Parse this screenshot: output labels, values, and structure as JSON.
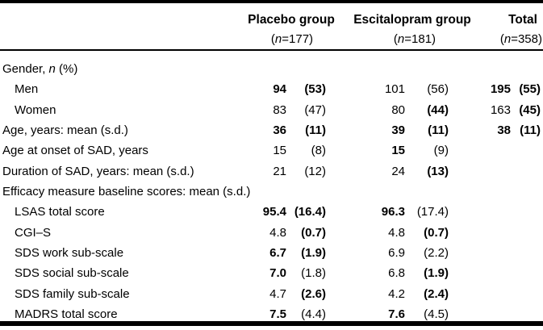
{
  "colors": {
    "text": "#000000",
    "background": "#ffffff",
    "rule": "#000000"
  },
  "table": {
    "header": {
      "columns": [
        {
          "title": "Placebo group",
          "sub": [
            {
              "t": "("
            },
            {
              "t": "n",
              "i": true
            },
            {
              "t": "=177)"
            }
          ]
        },
        {
          "title": "Escitalopram group",
          "sub": [
            {
              "t": "("
            },
            {
              "t": "n",
              "i": true
            },
            {
              "t": "=181)"
            }
          ]
        },
        {
          "title": "Total",
          "sub": [
            {
              "t": "("
            },
            {
              "t": "n",
              "i": true
            },
            {
              "t": "=358)"
            }
          ]
        }
      ]
    },
    "rows": [
      {
        "label": [
          {
            "t": "Gender, "
          },
          {
            "t": "n",
            "i": true
          },
          {
            "t": " (%)"
          }
        ],
        "indent": false,
        "placebo": null,
        "escitalopram": null,
        "total": null
      },
      {
        "label": [
          {
            "t": "Men"
          }
        ],
        "indent": true,
        "placebo": {
          "v": "94",
          "p": "(53)",
          "vb": true,
          "pb": true
        },
        "escitalopram": {
          "v": "101",
          "p": "(56)"
        },
        "total": {
          "v": "195",
          "p": "(55)",
          "vb": true,
          "pb": true
        }
      },
      {
        "label": [
          {
            "t": "Women"
          }
        ],
        "indent": true,
        "placebo": {
          "v": "83",
          "p": "(47)"
        },
        "escitalopram": {
          "v": "80",
          "p": "(44)",
          "pb": true
        },
        "total": {
          "v": "163",
          "p": "(45)",
          "pb": true
        }
      },
      {
        "label": [
          {
            "t": "Age, years: mean (s.d.)"
          }
        ],
        "indent": false,
        "placebo": {
          "v": "36",
          "p": "(11)",
          "vb": true,
          "pb": true
        },
        "escitalopram": {
          "v": "39",
          "p": "(11)",
          "vb": true,
          "pb": true
        },
        "total": {
          "v": "38",
          "p": "(11)",
          "vb": true,
          "pb": true
        }
      },
      {
        "label": [
          {
            "t": "Age at onset of SAD, years"
          }
        ],
        "indent": false,
        "placebo": {
          "v": "15",
          "p": "(8)"
        },
        "escitalopram": {
          "v": "15",
          "p": "(9)",
          "vb": true
        },
        "total": null
      },
      {
        "label": [
          {
            "t": "Duration of SAD, years: mean (s.d.)"
          }
        ],
        "indent": false,
        "placebo": {
          "v": "21",
          "p": "(12)"
        },
        "escitalopram": {
          "v": "24",
          "p": "(13)",
          "pb": true
        },
        "total": null
      },
      {
        "label": [
          {
            "t": "Efficacy measure baseline scores: mean (s.d.)"
          }
        ],
        "indent": false,
        "placebo": null,
        "escitalopram": null,
        "total": null
      },
      {
        "label": [
          {
            "t": "LSAS total score"
          }
        ],
        "indent": true,
        "placebo": {
          "v": "95.4",
          "p": "(16.4)",
          "vb": true,
          "pb": true
        },
        "escitalopram": {
          "v": "96.3",
          "p": "(17.4)",
          "vb": true
        },
        "total": null
      },
      {
        "label": [
          {
            "t": "CGI–S"
          }
        ],
        "indent": true,
        "placebo": {
          "v": "4.8",
          "p": "(0.7)",
          "pb": true
        },
        "escitalopram": {
          "v": "4.8",
          "p": "(0.7)",
          "pb": true
        },
        "total": null
      },
      {
        "label": [
          {
            "t": "SDS work sub-scale"
          }
        ],
        "indent": true,
        "placebo": {
          "v": "6.7",
          "p": "(1.9)",
          "vb": true,
          "pb": true
        },
        "escitalopram": {
          "v": "6.9",
          "p": "(2.2)"
        },
        "total": null
      },
      {
        "label": [
          {
            "t": "SDS social sub-scale"
          }
        ],
        "indent": true,
        "placebo": {
          "v": "7.0",
          "p": "(1.8)",
          "vb": true
        },
        "escitalopram": {
          "v": "6.8",
          "p": "(1.9)",
          "pb": true
        },
        "total": null
      },
      {
        "label": [
          {
            "t": "SDS family sub-scale"
          }
        ],
        "indent": true,
        "placebo": {
          "v": "4.7",
          "p": "(2.6)",
          "pb": true
        },
        "escitalopram": {
          "v": "4.2",
          "p": "(2.4)",
          "pb": true
        },
        "total": null
      },
      {
        "label": [
          {
            "t": "MADRS total score"
          }
        ],
        "indent": true,
        "placebo": {
          "v": "7.5",
          "p": "(4.4)",
          "vb": true
        },
        "escitalopram": {
          "v": "7.6",
          "p": "(4.5)",
          "vb": true
        },
        "total": null
      }
    ]
  }
}
